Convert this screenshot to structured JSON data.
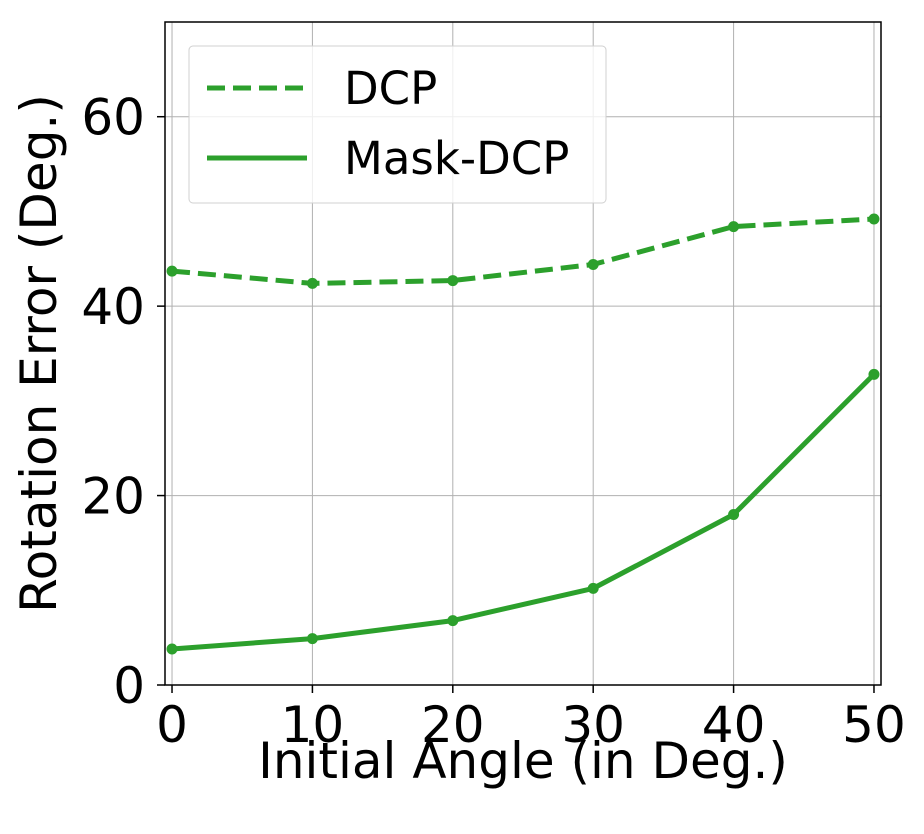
{
  "chart_data": {
    "type": "line",
    "title": "",
    "xlabel": "Initial Angle (in Deg.)",
    "ylabel": "Rotation Error (Deg.)",
    "xlim": [
      -0.5,
      50.5
    ],
    "ylim": [
      0,
      70
    ],
    "xticks": [
      0,
      10,
      20,
      30,
      40,
      50
    ],
    "yticks": [
      0,
      20,
      40,
      60
    ],
    "grid": true,
    "legend_position": "top-left",
    "x": [
      0,
      10,
      20,
      30,
      40,
      50
    ],
    "series": [
      {
        "name": "DCP",
        "values": [
          43.7,
          42.4,
          42.7,
          44.4,
          48.4,
          49.2
        ],
        "style": "dashed",
        "color": "#2ca02c"
      },
      {
        "name": "Mask-DCP",
        "values": [
          3.8,
          4.9,
          6.8,
          10.2,
          18.0,
          32.8
        ],
        "style": "solid",
        "color": "#2ca02c"
      }
    ]
  }
}
